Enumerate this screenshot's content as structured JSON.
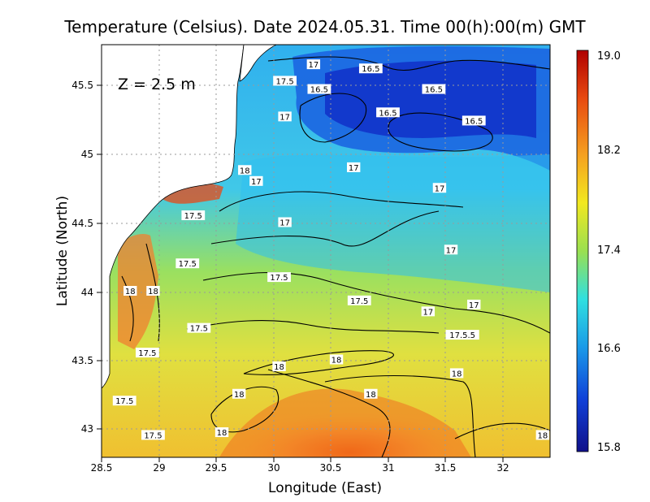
{
  "title": "Temperature (Celsius). Date 2024.05.31. Time 00(h):00(m) GMT",
  "depth_label": "Z = 2.5 m",
  "xlabel": "Longitude (East)",
  "ylabel": "Latitude (North)",
  "x_ticks": [
    "28.5",
    "29",
    "29.5",
    "30",
    "30.5",
    "31",
    "31.5",
    "32"
  ],
  "y_ticks": [
    "43",
    "43.5",
    "44",
    "44.5",
    "45",
    "45.5"
  ],
  "colorbar": {
    "min": 15.8,
    "max": 19.0,
    "tick_labels": [
      "19.0",
      "18.2",
      "17.4",
      "16.6",
      "15.8"
    ],
    "colors": [
      "#b00000",
      "#e84a10",
      "#f5a020",
      "#f2e820",
      "#9ae050",
      "#30e0e0",
      "#1a9ae8",
      "#1040d8",
      "#10108a"
    ]
  },
  "chart_data": {
    "type": "heatmap",
    "title": "Temperature (Celsius). Date 2024.05.31. Time 00(h):00(m) GMT",
    "xlabel": "Longitude (East)",
    "ylabel": "Latitude (North)",
    "xlim": [
      28.5,
      32.4
    ],
    "ylim": [
      42.8,
      45.8
    ],
    "value_range": [
      15.8,
      19.0
    ],
    "grid": true,
    "contour_labels": [
      {
        "text": "17",
        "lon": 30.35,
        "lat": 45.65
      },
      {
        "text": "16.5",
        "lon": 30.85,
        "lat": 45.62
      },
      {
        "text": "17.5",
        "lon": 30.1,
        "lat": 45.53
      },
      {
        "text": "16.5",
        "lon": 30.4,
        "lat": 45.47
      },
      {
        "text": "16.5",
        "lon": 31.4,
        "lat": 45.47
      },
      {
        "text": "16.5",
        "lon": 31.0,
        "lat": 45.3
      },
      {
        "text": "16.5",
        "lon": 31.75,
        "lat": 45.24
      },
      {
        "text": "17",
        "lon": 30.1,
        "lat": 45.27
      },
      {
        "text": "17",
        "lon": 30.7,
        "lat": 44.9
      },
      {
        "text": "18",
        "lon": 29.75,
        "lat": 44.88
      },
      {
        "text": "17",
        "lon": 29.85,
        "lat": 44.8
      },
      {
        "text": "17",
        "lon": 31.45,
        "lat": 44.75
      },
      {
        "text": "17.5",
        "lon": 29.3,
        "lat": 44.55
      },
      {
        "text": "17",
        "lon": 30.1,
        "lat": 44.5
      },
      {
        "text": "17",
        "lon": 31.55,
        "lat": 44.3
      },
      {
        "text": "17.5",
        "lon": 29.25,
        "lat": 44.2
      },
      {
        "text": "17.5",
        "lon": 30.05,
        "lat": 44.1
      },
      {
        "text": "18",
        "lon": 28.75,
        "lat": 44.0
      },
      {
        "text": "18",
        "lon": 28.95,
        "lat": 44.0
      },
      {
        "text": "17.5",
        "lon": 30.75,
        "lat": 43.93
      },
      {
        "text": "17",
        "lon": 31.35,
        "lat": 43.85
      },
      {
        "text": "17",
        "lon": 31.75,
        "lat": 43.9
      },
      {
        "text": "17.5",
        "lon": 29.35,
        "lat": 43.73
      },
      {
        "text": "17.5.5",
        "lon": 31.65,
        "lat": 43.68
      },
      {
        "text": "17.5",
        "lon": 28.9,
        "lat": 43.55
      },
      {
        "text": "18",
        "lon": 30.55,
        "lat": 43.5
      },
      {
        "text": "18",
        "lon": 30.05,
        "lat": 43.45
      },
      {
        "text": "18",
        "lon": 31.6,
        "lat": 43.4
      },
      {
        "text": "18",
        "lon": 29.7,
        "lat": 43.25
      },
      {
        "text": "18",
        "lon": 30.85,
        "lat": 43.25
      },
      {
        "text": "17.5",
        "lon": 28.7,
        "lat": 43.2
      },
      {
        "text": "17.5",
        "lon": 28.95,
        "lat": 42.95
      },
      {
        "text": "18",
        "lon": 29.55,
        "lat": 42.97
      },
      {
        "text": "18",
        "lon": 32.35,
        "lat": 42.95
      }
    ]
  }
}
